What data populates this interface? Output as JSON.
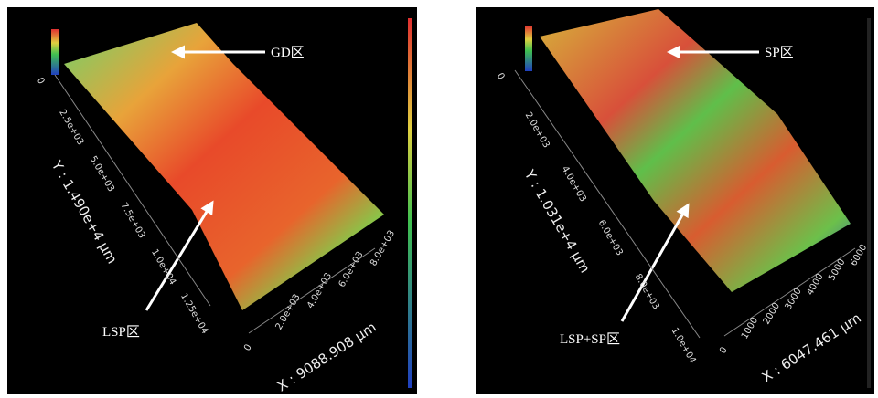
{
  "panels": [
    {
      "annotations": [
        "GD区",
        "LSP区"
      ],
      "y_axis": {
        "title": "Y : 1.490e+4 μm",
        "ticks": [
          "0",
          "2.5e+03",
          "5.0e+03",
          "7.5e+03",
          "1.0e+04",
          "1.25e+04"
        ]
      },
      "x_axis": {
        "title": "X : 9088.908 μm",
        "ticks": [
          "0",
          "2.0e+03",
          "4.0e+03",
          "6.0e+03",
          "8.0e+03"
        ]
      }
    },
    {
      "annotations": [
        "SP区",
        "LSP+SP区"
      ],
      "y_axis": {
        "title": "Y : 1.031e+4 μm",
        "ticks": [
          "0",
          "2.0e+03",
          "4.0e+03",
          "6.0e+03",
          "8.0e+03",
          "1.0e+04"
        ]
      },
      "x_axis": {
        "title": "X : 6047.461 μm",
        "ticks": [
          "0",
          "1000",
          "2000",
          "3000",
          "4000",
          "5000",
          "6000"
        ]
      }
    }
  ]
}
